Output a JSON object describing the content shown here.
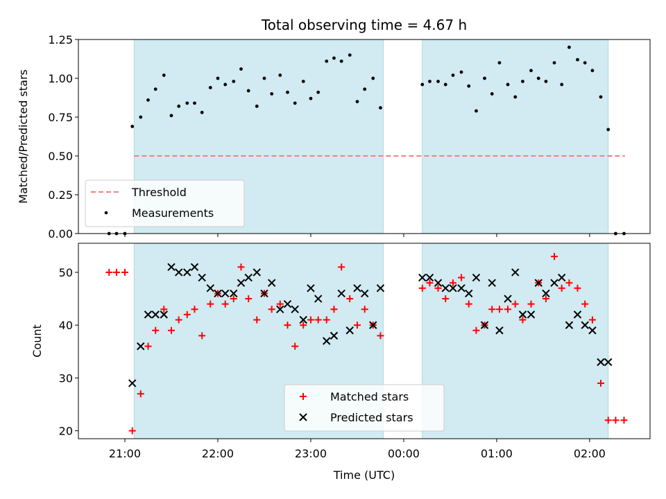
{
  "chart_data": [
    {
      "type": "scatter",
      "title": "Total observing time = 4.67 h",
      "ylabel": "Matched/Predicted stars",
      "xlabel": "",
      "x_unit": "hours since 00:00 UTC",
      "xlim": [
        -3.5,
        2.65
      ],
      "ylim": [
        0,
        1.25
      ],
      "yticks": [
        "0.00",
        "0.25",
        "0.50",
        "0.75",
        "1.00",
        "1.25"
      ],
      "xticks": [
        -3,
        -2,
        -1,
        0,
        1,
        2
      ],
      "shaded_intervals": [
        [
          -2.9,
          -0.22
        ],
        [
          0.2,
          2.2
        ]
      ],
      "shade_color": "#add8e6",
      "threshold": {
        "name": "Threshold",
        "y": 0.5,
        "x_range": [
          -2.9,
          2.38
        ],
        "color": "#f08080"
      },
      "series": [
        {
          "name": "Measurements",
          "color": "#000000",
          "x": [
            -3.17,
            -3.09,
            -3.0,
            -2.92,
            -2.83,
            -2.75,
            -2.67,
            -2.58,
            -2.5,
            -2.42,
            -2.33,
            -2.25,
            -2.17,
            -2.08,
            -2.0,
            -1.92,
            -1.83,
            -1.75,
            -1.67,
            -1.58,
            -1.5,
            -1.42,
            -1.33,
            -1.25,
            -1.17,
            -1.08,
            -1.0,
            -0.92,
            -0.83,
            -0.75,
            -0.67,
            -0.58,
            -0.5,
            -0.42,
            -0.33,
            -0.25,
            0.2,
            0.28,
            0.37,
            0.45,
            0.53,
            0.62,
            0.7,
            0.78,
            0.87,
            0.95,
            1.03,
            1.12,
            1.2,
            1.28,
            1.37,
            1.45,
            1.53,
            1.62,
            1.7,
            1.78,
            1.87,
            1.95,
            2.03,
            2.12,
            2.2,
            2.28,
            2.37
          ],
          "y": [
            0.0,
            0.0,
            0.0,
            0.69,
            0.75,
            0.86,
            0.93,
            1.02,
            0.76,
            0.82,
            0.84,
            0.84,
            0.78,
            0.94,
            1.0,
            0.96,
            0.98,
            1.06,
            0.92,
            0.82,
            1.0,
            0.9,
            1.02,
            0.91,
            0.84,
            0.98,
            0.87,
            0.91,
            1.11,
            1.13,
            1.11,
            1.15,
            0.85,
            0.93,
            1.0,
            0.81,
            0.96,
            0.98,
            0.98,
            0.96,
            1.02,
            1.04,
            0.95,
            0.79,
            1.0,
            0.9,
            1.1,
            0.96,
            0.88,
            0.98,
            1.05,
            1.0,
            0.98,
            1.1,
            0.96,
            1.2,
            1.12,
            1.1,
            1.05,
            0.88,
            0.67,
            0.0,
            0.0
          ]
        }
      ]
    },
    {
      "type": "scatter",
      "title": "",
      "ylabel": "Count",
      "xlabel": "Time (UTC)",
      "x_unit": "hours since 00:00 UTC",
      "xlim": [
        -3.5,
        2.65
      ],
      "ylim": [
        18.5,
        55.5
      ],
      "yticks": [
        "20",
        "30",
        "40",
        "50"
      ],
      "xticks": [
        -3,
        -2,
        -1,
        0,
        1,
        2
      ],
      "xtick_labels": [
        "21:00",
        "22:00",
        "23:00",
        "00:00",
        "01:00",
        "02:00"
      ],
      "shaded_intervals": [
        [
          -2.9,
          -0.22
        ],
        [
          0.2,
          2.2
        ]
      ],
      "shade_color": "#add8e6",
      "series": [
        {
          "name": "Matched stars",
          "marker": "plus",
          "color": "#ff0000",
          "x": [
            -3.17,
            -3.09,
            -3.0,
            -2.92,
            -2.83,
            -2.75,
            -2.67,
            -2.58,
            -2.5,
            -2.42,
            -2.33,
            -2.25,
            -2.17,
            -2.08,
            -2.0,
            -1.92,
            -1.83,
            -1.75,
            -1.67,
            -1.58,
            -1.5,
            -1.42,
            -1.33,
            -1.25,
            -1.17,
            -1.08,
            -1.0,
            -0.92,
            -0.83,
            -0.75,
            -0.67,
            -0.58,
            -0.5,
            -0.42,
            -0.33,
            -0.25,
            0.2,
            0.28,
            0.37,
            0.45,
            0.53,
            0.62,
            0.7,
            0.78,
            0.87,
            0.95,
            1.03,
            1.12,
            1.2,
            1.28,
            1.37,
            1.45,
            1.53,
            1.62,
            1.7,
            1.78,
            1.87,
            1.95,
            2.03,
            2.12,
            2.2,
            2.28,
            2.37
          ],
          "y": [
            50,
            50,
            50,
            20,
            27,
            36,
            39,
            43,
            39,
            41,
            42,
            43,
            38,
            44,
            46,
            44,
            45,
            51,
            45,
            41,
            46,
            43,
            44,
            40,
            36,
            40,
            41,
            41,
            41,
            43,
            51,
            45,
            40,
            43,
            40,
            38,
            47,
            48,
            47,
            45,
            48,
            49,
            44,
            39,
            40,
            43,
            43,
            43,
            44,
            41,
            44,
            48,
            45,
            53,
            47,
            48,
            47,
            44,
            41,
            29,
            22,
            22,
            22
          ]
        },
        {
          "name": "Predicted stars",
          "marker": "x",
          "color": "#000000",
          "x": [
            -2.92,
            -2.83,
            -2.75,
            -2.67,
            -2.58,
            -2.5,
            -2.42,
            -2.33,
            -2.25,
            -2.17,
            -2.08,
            -2.0,
            -1.92,
            -1.83,
            -1.75,
            -1.67,
            -1.58,
            -1.5,
            -1.42,
            -1.33,
            -1.25,
            -1.17,
            -1.08,
            -1.0,
            -0.92,
            -0.83,
            -0.75,
            -0.67,
            -0.58,
            -0.5,
            -0.42,
            -0.33,
            -0.25,
            0.2,
            0.28,
            0.37,
            0.45,
            0.53,
            0.62,
            0.7,
            0.78,
            0.87,
            0.95,
            1.03,
            1.12,
            1.2,
            1.28,
            1.37,
            1.45,
            1.53,
            1.62,
            1.7,
            1.78,
            1.87,
            1.95,
            2.03,
            2.12,
            2.2
          ],
          "y": [
            29,
            36,
            42,
            42,
            42,
            51,
            50,
            50,
            51,
            49,
            47,
            46,
            46,
            46,
            48,
            49,
            50,
            46,
            48,
            43,
            44,
            43,
            41,
            47,
            45,
            37,
            38,
            46,
            39,
            47,
            46,
            40,
            47,
            49,
            49,
            48,
            47,
            47,
            47,
            46,
            49,
            40,
            48,
            39,
            45,
            50,
            42,
            42,
            48,
            46,
            48,
            49,
            40,
            42,
            40,
            39,
            33,
            33
          ]
        }
      ]
    }
  ]
}
